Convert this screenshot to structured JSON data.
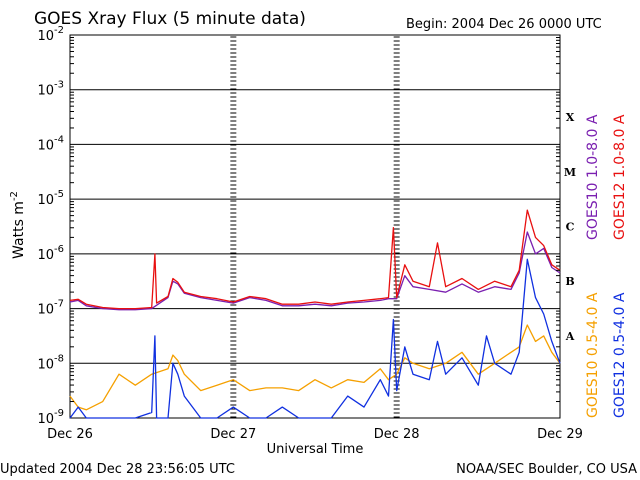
{
  "chart_data": {
    "type": "line",
    "title": "GOES Xray Flux (5 minute data)",
    "begin_label": "Begin:  2004 Dec 26 0000 UTC",
    "ylabel": "Watts m",
    "ylabel_sup": "-2",
    "xlabel": "Universal Time",
    "y_scale": "log",
    "ylim": [
      1e-09,
      0.01
    ],
    "y_ticks": [
      {
        "mant": "10",
        "exp": "-2",
        "value": 0.01
      },
      {
        "mant": "10",
        "exp": "-3",
        "value": 0.001
      },
      {
        "mant": "10",
        "exp": "-4",
        "value": 0.0001
      },
      {
        "mant": "10",
        "exp": "-5",
        "value": 1e-05
      },
      {
        "mant": "10",
        "exp": "-6",
        "value": 1e-06
      },
      {
        "mant": "10",
        "exp": "-7",
        "value": 1e-07
      },
      {
        "mant": "10",
        "exp": "-8",
        "value": 1e-08
      },
      {
        "mant": "10",
        "exp": "-9",
        "value": 1e-09
      }
    ],
    "x_ticks": [
      "Dec 26",
      "Dec 27",
      "Dec 28",
      "Dec 29"
    ],
    "xlim_days": [
      0,
      3
    ],
    "flare_classes": [
      {
        "label": "X",
        "log_center": -3.5
      },
      {
        "label": "M",
        "log_center": -4.5
      },
      {
        "label": "C",
        "log_center": -5.5
      },
      {
        "label": "B",
        "log_center": -6.5
      },
      {
        "label": "A",
        "log_center": -7.5
      }
    ],
    "series": [
      {
        "name": "GOES10 1.0-8.0 A",
        "color": "#7a1fb0",
        "channel": "long",
        "points": [
          [
            0,
            -6.88
          ],
          [
            0.05,
            -6.85
          ],
          [
            0.1,
            -6.95
          ],
          [
            0.2,
            -7.0
          ],
          [
            0.3,
            -7.02
          ],
          [
            0.4,
            -7.02
          ],
          [
            0.5,
            -7.0
          ],
          [
            0.55,
            -6.9
          ],
          [
            0.6,
            -6.8
          ],
          [
            0.63,
            -6.5
          ],
          [
            0.66,
            -6.55
          ],
          [
            0.7,
            -6.72
          ],
          [
            0.8,
            -6.8
          ],
          [
            0.9,
            -6.85
          ],
          [
            1.0,
            -6.9
          ],
          [
            1.1,
            -6.8
          ],
          [
            1.2,
            -6.85
          ],
          [
            1.3,
            -6.95
          ],
          [
            1.4,
            -6.95
          ],
          [
            1.5,
            -6.92
          ],
          [
            1.6,
            -6.95
          ],
          [
            1.7,
            -6.9
          ],
          [
            1.8,
            -6.88
          ],
          [
            1.9,
            -6.85
          ],
          [
            1.95,
            -6.82
          ],
          [
            2.0,
            -6.82
          ],
          [
            2.05,
            -6.4
          ],
          [
            2.1,
            -6.6
          ],
          [
            2.2,
            -6.65
          ],
          [
            2.3,
            -6.7
          ],
          [
            2.4,
            -6.55
          ],
          [
            2.5,
            -6.7
          ],
          [
            2.6,
            -6.6
          ],
          [
            2.7,
            -6.65
          ],
          [
            2.75,
            -6.35
          ],
          [
            2.8,
            -5.6
          ],
          [
            2.85,
            -6.0
          ],
          [
            2.9,
            -5.9
          ],
          [
            2.95,
            -6.25
          ],
          [
            3.0,
            -6.35
          ]
        ]
      },
      {
        "name": "GOES12 1.0-8.0 A",
        "color": "#e81010",
        "channel": "long",
        "points": [
          [
            0,
            -6.85
          ],
          [
            0.05,
            -6.83
          ],
          [
            0.1,
            -6.92
          ],
          [
            0.2,
            -6.98
          ],
          [
            0.3,
            -7.0
          ],
          [
            0.4,
            -7.0
          ],
          [
            0.5,
            -6.98
          ],
          [
            0.52,
            -6.0
          ],
          [
            0.53,
            -6.9
          ],
          [
            0.6,
            -6.78
          ],
          [
            0.63,
            -6.45
          ],
          [
            0.66,
            -6.52
          ],
          [
            0.7,
            -6.7
          ],
          [
            0.8,
            -6.78
          ],
          [
            0.9,
            -6.82
          ],
          [
            1.0,
            -6.88
          ],
          [
            1.1,
            -6.78
          ],
          [
            1.2,
            -6.82
          ],
          [
            1.3,
            -6.92
          ],
          [
            1.4,
            -6.92
          ],
          [
            1.5,
            -6.88
          ],
          [
            1.6,
            -6.92
          ],
          [
            1.7,
            -6.88
          ],
          [
            1.8,
            -6.85
          ],
          [
            1.9,
            -6.82
          ],
          [
            1.95,
            -6.8
          ],
          [
            1.98,
            -5.52
          ],
          [
            2.0,
            -6.8
          ],
          [
            2.05,
            -6.2
          ],
          [
            2.1,
            -6.5
          ],
          [
            2.2,
            -6.6
          ],
          [
            2.25,
            -5.8
          ],
          [
            2.3,
            -6.6
          ],
          [
            2.4,
            -6.45
          ],
          [
            2.5,
            -6.65
          ],
          [
            2.6,
            -6.5
          ],
          [
            2.7,
            -6.6
          ],
          [
            2.75,
            -6.3
          ],
          [
            2.8,
            -5.2
          ],
          [
            2.85,
            -5.7
          ],
          [
            2.9,
            -5.85
          ],
          [
            2.95,
            -6.2
          ],
          [
            3.0,
            -6.3
          ]
        ]
      },
      {
        "name": "GOES10 0.5-4.0 A",
        "color": "#f5a000",
        "channel": "short",
        "points": [
          [
            0,
            -8.6
          ],
          [
            0.05,
            -8.8
          ],
          [
            0.1,
            -8.85
          ],
          [
            0.2,
            -8.7
          ],
          [
            0.3,
            -8.2
          ],
          [
            0.4,
            -8.4
          ],
          [
            0.5,
            -8.2
          ],
          [
            0.6,
            -8.1
          ],
          [
            0.63,
            -7.85
          ],
          [
            0.66,
            -7.95
          ],
          [
            0.7,
            -8.2
          ],
          [
            0.8,
            -8.5
          ],
          [
            0.9,
            -8.4
          ],
          [
            1.0,
            -8.3
          ],
          [
            1.1,
            -8.5
          ],
          [
            1.2,
            -8.45
          ],
          [
            1.3,
            -8.45
          ],
          [
            1.4,
            -8.5
          ],
          [
            1.5,
            -8.3
          ],
          [
            1.6,
            -8.45
          ],
          [
            1.7,
            -8.3
          ],
          [
            1.8,
            -8.35
          ],
          [
            1.9,
            -8.1
          ],
          [
            1.95,
            -8.3
          ],
          [
            2.0,
            -8.2
          ],
          [
            2.05,
            -7.9
          ],
          [
            2.1,
            -8.0
          ],
          [
            2.2,
            -8.1
          ],
          [
            2.3,
            -8.0
          ],
          [
            2.4,
            -7.8
          ],
          [
            2.5,
            -8.2
          ],
          [
            2.6,
            -8.0
          ],
          [
            2.7,
            -7.8
          ],
          [
            2.75,
            -7.7
          ],
          [
            2.8,
            -7.3
          ],
          [
            2.85,
            -7.6
          ],
          [
            2.9,
            -7.5
          ],
          [
            2.95,
            -7.8
          ],
          [
            3.0,
            -8.0
          ]
        ]
      },
      {
        "name": "GOES12 0.5-4.0 A",
        "color": "#1030e0",
        "channel": "short",
        "points": [
          [
            0,
            -9.0
          ],
          [
            0.05,
            -8.8
          ],
          [
            0.1,
            -9.0
          ],
          [
            0.2,
            -9.0
          ],
          [
            0.3,
            -9.0
          ],
          [
            0.4,
            -9.0
          ],
          [
            0.5,
            -8.9
          ],
          [
            0.52,
            -7.5
          ],
          [
            0.53,
            -9.0
          ],
          [
            0.6,
            -9.0
          ],
          [
            0.63,
            -8.0
          ],
          [
            0.66,
            -8.2
          ],
          [
            0.7,
            -8.6
          ],
          [
            0.8,
            -9.0
          ],
          [
            0.9,
            -9.0
          ],
          [
            1.0,
            -8.8
          ],
          [
            1.1,
            -9.0
          ],
          [
            1.2,
            -9.0
          ],
          [
            1.3,
            -8.8
          ],
          [
            1.4,
            -9.0
          ],
          [
            1.5,
            -9.0
          ],
          [
            1.6,
            -9.0
          ],
          [
            1.7,
            -8.6
          ],
          [
            1.8,
            -8.8
          ],
          [
            1.9,
            -8.3
          ],
          [
            1.95,
            -8.6
          ],
          [
            1.98,
            -7.2
          ],
          [
            2.0,
            -8.5
          ],
          [
            2.05,
            -7.7
          ],
          [
            2.1,
            -8.2
          ],
          [
            2.2,
            -8.3
          ],
          [
            2.25,
            -7.6
          ],
          [
            2.3,
            -8.2
          ],
          [
            2.4,
            -7.9
          ],
          [
            2.5,
            -8.4
          ],
          [
            2.55,
            -7.5
          ],
          [
            2.6,
            -8.0
          ],
          [
            2.7,
            -8.2
          ],
          [
            2.75,
            -7.8
          ],
          [
            2.8,
            -6.1
          ],
          [
            2.85,
            -6.8
          ],
          [
            2.9,
            -7.1
          ],
          [
            2.95,
            -7.6
          ],
          [
            3.0,
            -8.0
          ]
        ]
      }
    ]
  },
  "footer": {
    "updated": "Updated 2004 Dec 28 23:56:05 UTC",
    "source": "NOAA/SEC Boulder, CO USA"
  }
}
